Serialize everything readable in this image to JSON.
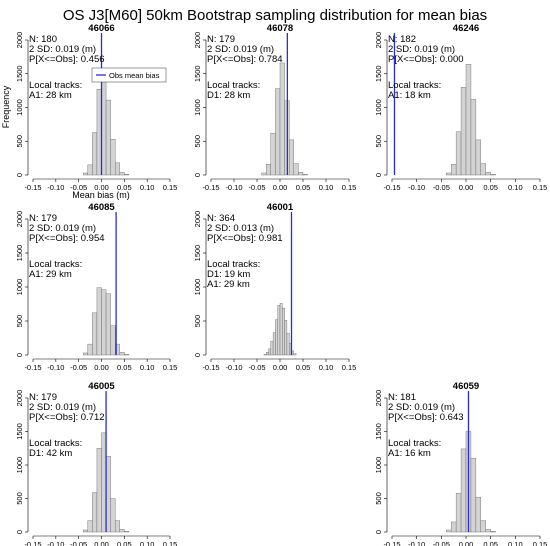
{
  "title": "OS J3[M60] 50km Bootstrap sampling distribution for mean bias",
  "legend": {
    "label": "Obs mean bias",
    "color": "#2b2bdc"
  },
  "ylabel": "Frequency",
  "xlabel": "Mean bias (m)",
  "colors": {
    "bar_fill": "#d3d3d3",
    "bar_edge": "#666666",
    "obs_line": "#2b2bdc"
  },
  "chart_data": [
    {
      "type": "bar",
      "station": "46066",
      "stats": [
        "N: 180",
        "2 SD: 0.019 (m)",
        "P[X<=Obs]: 0.456"
      ],
      "tracks_heading": "Local tracks:",
      "tracks": [
        "A1: 28 km"
      ],
      "obs": 0.0,
      "bins": [
        -0.05,
        -0.04,
        -0.03,
        -0.02,
        -0.01,
        0.0,
        0.01,
        0.02,
        0.03,
        0.04,
        0.05
      ],
      "counts": [
        0,
        30,
        150,
        630,
        1270,
        1580,
        1110,
        530,
        180,
        40,
        10
      ],
      "xlim": [
        -0.15,
        0.15
      ],
      "ylim": [
        0,
        2000
      ],
      "xticks": [
        "-0.15",
        "-0.10",
        "-0.05",
        "0.00",
        "0.05",
        "0.10",
        "0.15"
      ],
      "yticks": [
        "0",
        "500",
        "1000",
        "1500",
        "2000"
      ]
    },
    {
      "type": "bar",
      "station": "46078",
      "stats": [
        "N: 179",
        "2 SD: 0.019 (m)",
        "P[X<=Obs]: 0.784"
      ],
      "tracks_heading": "Local tracks:",
      "tracks": [
        "D1: 28 km"
      ],
      "obs": 0.016,
      "bins": [
        -0.05,
        -0.04,
        -0.03,
        -0.02,
        -0.01,
        0.0,
        0.01,
        0.02,
        0.03,
        0.04,
        0.05
      ],
      "counts": [
        0,
        30,
        160,
        620,
        1280,
        1660,
        1100,
        520,
        170,
        40,
        10
      ],
      "xlim": [
        -0.15,
        0.15
      ],
      "ylim": [
        0,
        2000
      ],
      "xticks": [
        "-0.15",
        "-0.10",
        "-0.05",
        "0.00",
        "0.05",
        "0.10",
        "0.15"
      ],
      "yticks": [
        "0",
        "500",
        "1000",
        "1500",
        "2000"
      ]
    },
    {
      "type": "bar",
      "station": "46246",
      "stats": [
        "N: 182",
        "2 SD: 0.019 (m)",
        "P[X<=Obs]: 0.000"
      ],
      "tracks_heading": "Local tracks:",
      "tracks": [
        "A1: 18 km"
      ],
      "obs": -0.145,
      "bins": [
        -0.05,
        -0.04,
        -0.03,
        -0.02,
        -0.01,
        0.0,
        0.01,
        0.02,
        0.03,
        0.04,
        0.05
      ],
      "counts": [
        0,
        30,
        160,
        640,
        1300,
        1640,
        1120,
        520,
        170,
        40,
        10
      ],
      "xlim": [
        -0.15,
        0.15
      ],
      "ylim": [
        0,
        2000
      ],
      "xticks": [
        "-0.15",
        "-0.10",
        "-0.05",
        "0.00",
        "0.05",
        "0.10",
        "0.15"
      ],
      "yticks": [
        "0",
        "500",
        "1000",
        "1500",
        "2000"
      ]
    },
    {
      "type": "bar",
      "station": "46085",
      "stats": [
        "N: 179",
        "2 SD: 0.019 (m)",
        "P[X<=Obs]: 0.954"
      ],
      "tracks_heading": "Local tracks:",
      "tracks": [
        "A1: 29 km"
      ],
      "obs": 0.032,
      "bins": [
        -0.05,
        -0.04,
        -0.03,
        -0.02,
        -0.01,
        0.0,
        0.01,
        0.02,
        0.03,
        0.04,
        0.05
      ],
      "counts": [
        0,
        30,
        160,
        620,
        990,
        960,
        900,
        430,
        160,
        40,
        10
      ],
      "xlim": [
        -0.15,
        0.15
      ],
      "ylim": [
        0,
        2000
      ],
      "xticks": [
        "-0.15",
        "-0.10",
        "-0.05",
        "0.00",
        "0.05",
        "0.10",
        "0.15"
      ],
      "yticks": [
        "0",
        "500",
        "1000",
        "1500",
        "2000"
      ]
    },
    {
      "type": "bar",
      "station": "46001",
      "stats": [
        "N: 364",
        "2 SD: 0.013 (m)",
        "P[X<=Obs]: 0.981"
      ],
      "tracks_heading": "Local tracks:",
      "tracks": [
        "D1: 19 km",
        "A1: 29 km"
      ],
      "obs": 0.025,
      "bins": [
        -0.04,
        -0.035,
        -0.03,
        -0.025,
        -0.02,
        -0.015,
        -0.01,
        -0.005,
        0.0,
        0.005,
        0.01,
        0.015,
        0.02,
        0.025,
        0.03
      ],
      "counts": [
        0,
        10,
        40,
        90,
        200,
        330,
        520,
        730,
        760,
        690,
        510,
        320,
        170,
        60,
        20
      ],
      "xlim": [
        -0.15,
        0.15
      ],
      "ylim": [
        0,
        2000
      ],
      "xticks": [
        "-0.15",
        "-0.10",
        "-0.05",
        "0.00",
        "0.05",
        "0.10",
        "0.15"
      ],
      "yticks": [
        "0",
        "500",
        "1000",
        "1500",
        "2000"
      ]
    },
    {
      "type": "bar",
      "station": "46005",
      "stats": [
        "N: 179",
        "2 SD: 0.019 (m)",
        "P[X<=Obs]: 0.712"
      ],
      "tracks_heading": "Local tracks:",
      "tracks": [
        "D1: 42 km"
      ],
      "obs": 0.01,
      "bins": [
        -0.05,
        -0.04,
        -0.03,
        -0.02,
        -0.01,
        0.0,
        0.01,
        0.02,
        0.03,
        0.04,
        0.05
      ],
      "counts": [
        0,
        30,
        170,
        590,
        1250,
        1480,
        1130,
        500,
        170,
        40,
        10
      ],
      "xlim": [
        -0.15,
        0.15
      ],
      "ylim": [
        0,
        2000
      ],
      "xticks": [
        "-0.15",
        "-0.10",
        "-0.05",
        "0.00",
        "0.05",
        "0.10",
        "0.15"
      ],
      "yticks": [
        "0",
        "500",
        "1000",
        "1500",
        "2000"
      ]
    },
    {
      "type": "bar",
      "station": "46059",
      "stats": [
        "N: 181",
        "2 SD: 0.019 (m)",
        "P[X<=Obs]: 0.643"
      ],
      "tracks_heading": "Local tracks:",
      "tracks": [
        "A1: 16 km"
      ],
      "obs": 0.005,
      "bins": [
        -0.05,
        -0.04,
        -0.03,
        -0.02,
        -0.01,
        0.0,
        0.01,
        0.02,
        0.03,
        0.04,
        0.05
      ],
      "counts": [
        0,
        30,
        150,
        580,
        1240,
        1500,
        1100,
        520,
        170,
        40,
        10
      ],
      "xlim": [
        -0.15,
        0.15
      ],
      "ylim": [
        0,
        2000
      ],
      "xticks": [
        "-0.15",
        "-0.10",
        "-0.05",
        "0.00",
        "0.05",
        "0.10",
        "0.15"
      ],
      "yticks": [
        "0",
        "500",
        "1000",
        "1500",
        "2000"
      ]
    }
  ]
}
